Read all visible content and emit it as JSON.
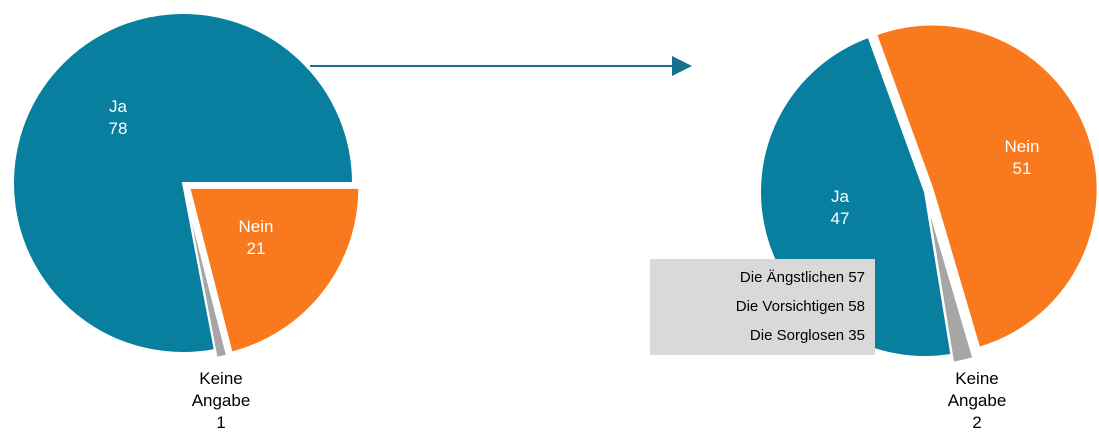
{
  "chart_data": [
    {
      "type": "pie",
      "categories": [
        "Nein",
        "Keine Angabe",
        "Ja"
      ],
      "values": [
        21,
        1,
        78
      ],
      "colors": [
        "#f97a1e",
        "#a6a6a6",
        "#087f9f"
      ]
    },
    {
      "type": "pie",
      "categories": [
        "Nein",
        "Keine Angabe",
        "Ja"
      ],
      "values": [
        51,
        2,
        47
      ],
      "colors": [
        "#f97a1e",
        "#a6a6a6",
        "#087f9f"
      ],
      "annotations": [
        "Die Ängstlichen 57",
        "Die Vorsichtigen 58",
        "Die Sorglosen 35"
      ]
    }
  ]
}
